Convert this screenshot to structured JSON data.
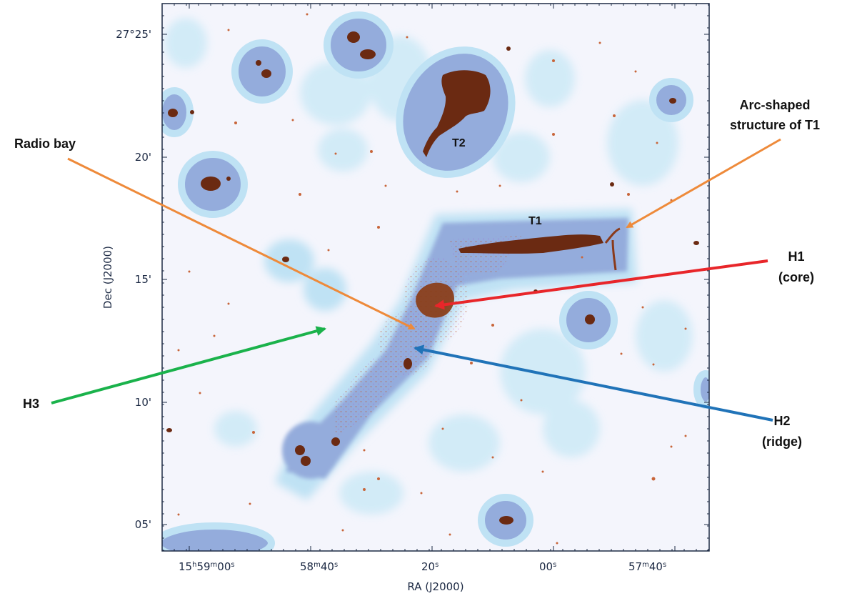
{
  "axes": {
    "xlabel": "RA (J2000)",
    "ylabel": "Dec (J2000)",
    "x_ticks": [
      {
        "pre": "15",
        "h": "h",
        "mid": "59",
        "m": "m",
        "val": "00",
        "s": "s"
      },
      {
        "pre": "",
        "h": "",
        "mid": "58",
        "m": "m",
        "val": "40",
        "s": "s"
      },
      {
        "pre": "",
        "h": "",
        "mid": "",
        "m": "",
        "val": "20",
        "s": "s"
      },
      {
        "pre": "",
        "h": "",
        "mid": "",
        "m": "",
        "val": "00",
        "s": "s"
      },
      {
        "pre": "",
        "h": "",
        "mid": "57",
        "m": "m",
        "val": "40",
        "s": "s"
      }
    ],
    "y_ticks": [
      "27°25'",
      "20'",
      "15'",
      "10'",
      "05'"
    ]
  },
  "labels": {
    "t1": "T1",
    "t2": "T2",
    "radio_bay": "Radio bay",
    "arc_line1": "Arc-shaped",
    "arc_line2": "structure of T1",
    "h1_line1": "H1",
    "h1_line2": "(core)",
    "h2_line1": "H2",
    "h2_line2": "(ridge)",
    "h3": "H3"
  },
  "colors": {
    "radio": "#6b2a12",
    "xray_dense": "#8fa7d8",
    "xray_faint": "#c8e6f5",
    "background": "#f2f3fb",
    "arrow_orange": "#ee8a3a",
    "arrow_red": "#e8262a",
    "arrow_green": "#1ab24b",
    "arrow_blue": "#2073b8",
    "frame": "#1d2a44"
  }
}
